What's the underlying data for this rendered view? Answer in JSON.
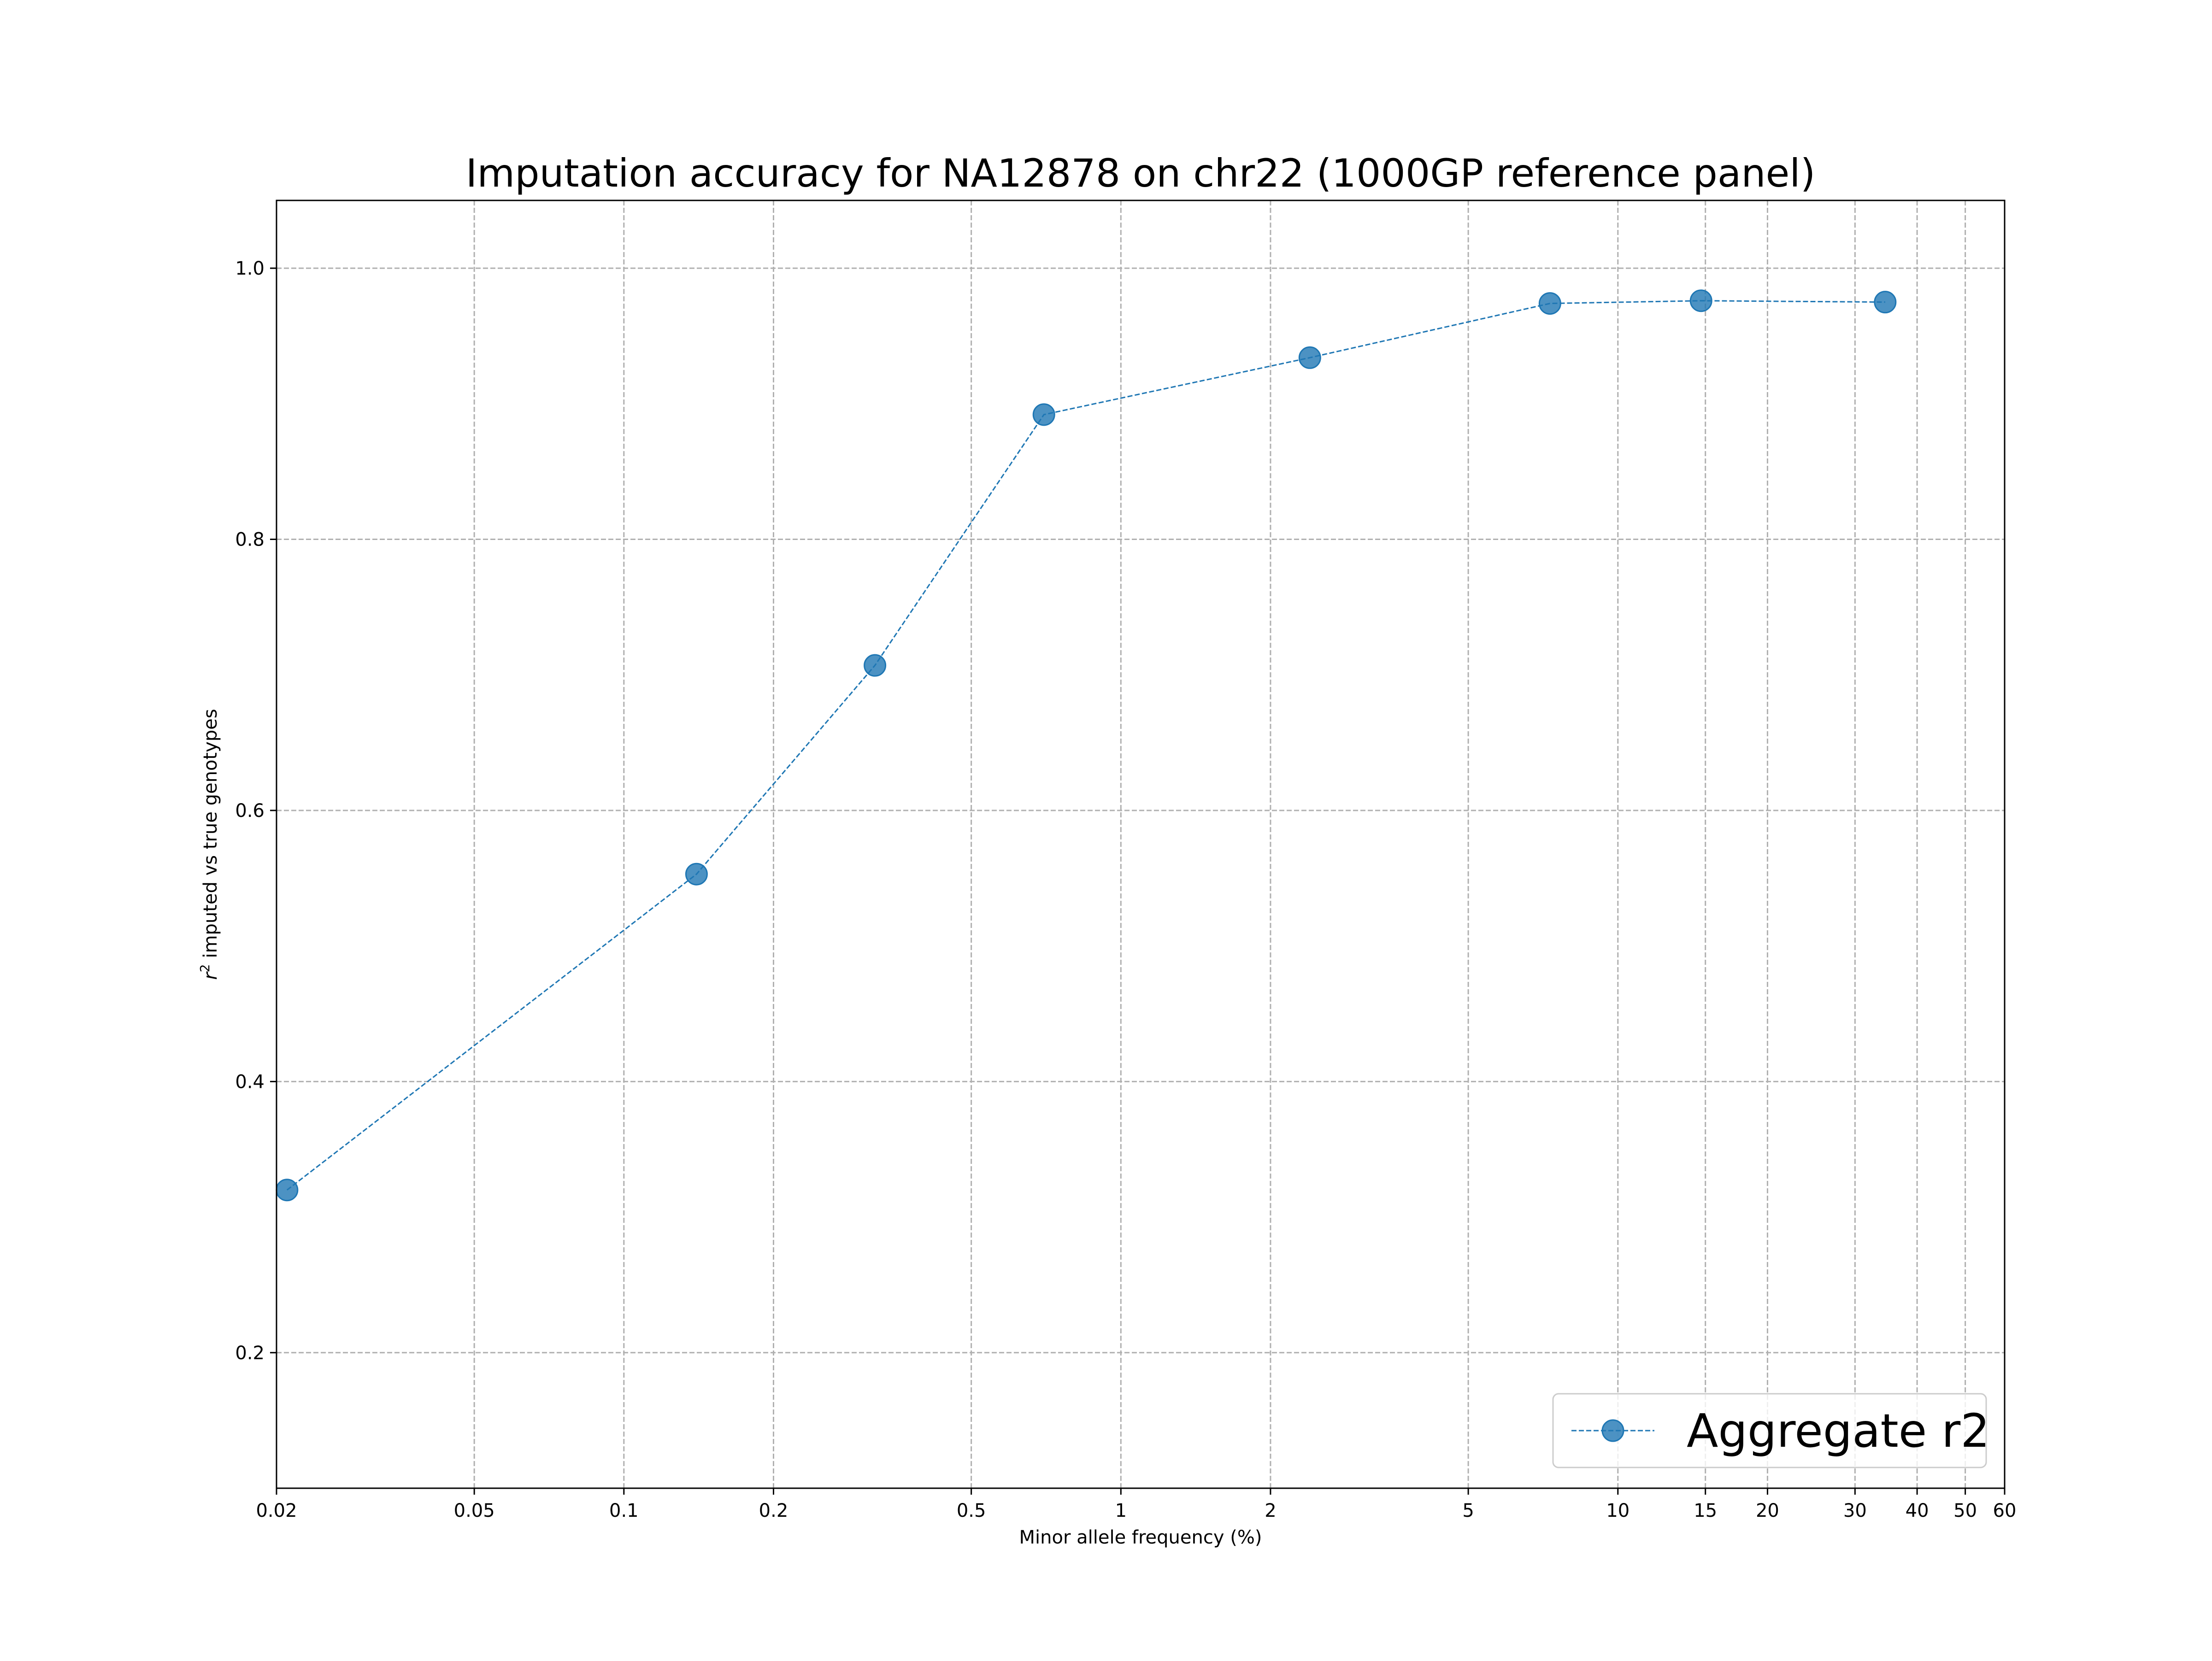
{
  "chart_data": {
    "type": "line",
    "title": "Imputation accuracy for NA12878 on chr22 (1000GP reference panel)",
    "xlabel": "Minor allele frequency (%)",
    "ylabel_prefix": "r",
    "ylabel_sup": "2",
    "ylabel_suffix": " imputed vs true genotypes",
    "xscale": "log",
    "xlim": [
      0.02,
      60
    ],
    "ylim": [
      0.1,
      1.05
    ],
    "xticks": [
      0.02,
      0.05,
      0.1,
      0.2,
      0.5,
      1,
      2,
      5,
      10,
      15,
      20,
      30,
      40,
      50,
      60
    ],
    "xtick_labels": [
      "0.02",
      "0.05",
      "0.1",
      "0.2",
      "0.5",
      "1",
      "2",
      "5",
      "10",
      "15",
      "20",
      "30",
      "40",
      "50",
      "60"
    ],
    "yticks": [
      0.2,
      0.4,
      0.6,
      0.8,
      1.0
    ],
    "ytick_labels": [
      "0.2",
      "0.4",
      "0.6",
      "0.8",
      "1.0"
    ],
    "grid": true,
    "legend_position": "lower-right",
    "series": [
      {
        "name": "Aggregate r2",
        "color": "#1f77b4",
        "linestyle": "dashed",
        "marker": "circle",
        "x": [
          0.021,
          0.14,
          0.32,
          0.7,
          2.4,
          7.3,
          14.7,
          34.5
        ],
        "y": [
          0.32,
          0.553,
          0.707,
          0.892,
          0.934,
          0.974,
          0.976,
          0.975
        ]
      }
    ]
  }
}
